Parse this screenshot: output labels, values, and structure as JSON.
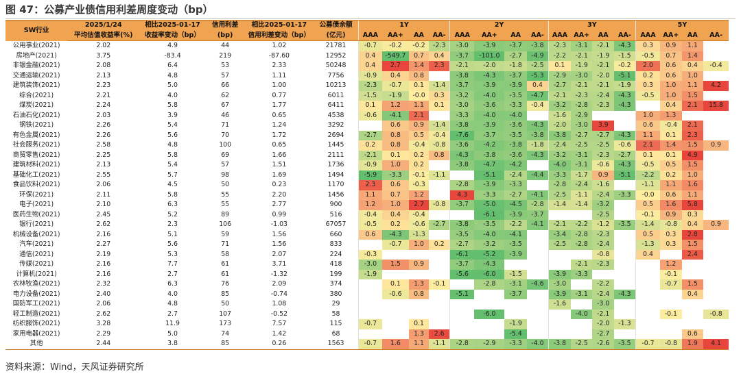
{
  "title": "图 47：公募产业债信用利差周度变动（bp）",
  "source": "资料来源：Wind，天风证券研究所",
  "header": {
    "sw": "SW行业",
    "c1a": "2025/1/24",
    "c1b": "平均估值收益率(%)",
    "c2a": "相比2025-01-17",
    "c2b": "收益率变动（bp）",
    "c3a": "信用利差",
    "c3b": "(bp)",
    "c4a": "相比2025-01-17",
    "c4b": "信用利差变动（bp）",
    "c5a": "公募债余额",
    "c5b": "(亿元)",
    "groups": [
      "1Y",
      "2Y",
      "3Y",
      "5Y"
    ],
    "ratings": [
      "AAA",
      "AA+",
      "AA",
      "AA-"
    ]
  },
  "rows": [
    {
      "name": "公用事业(2021)",
      "y": "2.02",
      "dy": "4.9",
      "s": "44",
      "ds": "1.02",
      "bal": "21781",
      "v": [
        "-0.7",
        "-0.2",
        "-0.2",
        "-2.3",
        "-3.0",
        "-3.9",
        "-3.7",
        "-3.8",
        "-2.3",
        "-3.1",
        "-2.1",
        "-4.3",
        "0.3",
        "0.9",
        "1.1",
        ""
      ]
    },
    {
      "name": "房地产(2021)",
      "y": "3.75",
      "dy": "-83.4",
      "s": "219",
      "ds": "-87.60",
      "bal": "12952",
      "v": [
        "0.4",
        "-549.7",
        "0.7",
        "0.4",
        "-3.7",
        "-101.0",
        "-2.7",
        "-4.9",
        "-2.2",
        "-2.1",
        "-1.9",
        "-1.5",
        "-0.5",
        "0.7",
        "1.4",
        ""
      ]
    },
    {
      "name": "非银金融(2021)",
      "y": "2.08",
      "dy": "6.4",
      "s": "53",
      "ds": "2.33",
      "bal": "50248",
      "v": [
        "0.4",
        "2.7",
        "1.4",
        "2.3",
        "-2.1",
        "-2.0",
        "-1.8",
        "-2.5",
        "0.1",
        "-1.9",
        "-2.1",
        "-0.2",
        "2.0",
        "0.6",
        "0.4",
        "-0.4"
      ]
    },
    {
      "name": "交通运输(2021)",
      "y": "2.13",
      "dy": "4.8",
      "s": "57",
      "ds": "1.11",
      "bal": "7756",
      "v": [
        "-0.9",
        "0.4",
        "0.8",
        "",
        "-3.8",
        "-4.3",
        "-3.7",
        "-5.3",
        "-2.9",
        "-3.0",
        "-2.0",
        "-5.1",
        "0.2",
        "0.6",
        "1.0",
        ""
      ]
    },
    {
      "name": "建筑装饰(2021)",
      "y": "2.23",
      "dy": "5.0",
      "s": "66",
      "ds": "1.00",
      "bal": "10213",
      "v": [
        "-2.3",
        "-0.7",
        "0.1",
        "-1.4",
        "-3.7",
        "-3.9",
        "-3.9",
        "0.4",
        "-2.7",
        "-2.1",
        "-2.1",
        "-1.9",
        "0.3",
        "1.0",
        "1.1",
        "4.2"
      ]
    },
    {
      "name": "综合(2021)",
      "y": "2.21",
      "dy": "4.0",
      "s": "62",
      "ds": "0.77",
      "bal": "6011",
      "v": [
        "-1.5",
        "-1.9",
        "-0.0",
        "0.3",
        "-3.2",
        "-4.0",
        "-3.5",
        "-4.7",
        "-2.1",
        "-2.3",
        "-2.4",
        "-4.3",
        "-0.5",
        "1.0",
        "1.5",
        ""
      ]
    },
    {
      "name": "煤炭(2021)",
      "y": "2.24",
      "dy": "5.8",
      "s": "67",
      "ds": "1.77",
      "bal": "6411",
      "v": [
        "0.1",
        "1.2",
        "1.1",
        "0.1",
        "-3.0",
        "-3.6",
        "-3.3",
        "-0.4",
        "-3.2",
        "-2.8",
        "-2.3",
        "-4.3",
        "",
        "0.4",
        "2.1",
        "15.8"
      ]
    },
    {
      "name": "石油石化(2021)",
      "y": "2.03",
      "dy": "3.9",
      "s": "46",
      "ds": "0.65",
      "bal": "4538",
      "v": [
        "-0.6",
        "-4.1",
        "2.1",
        "",
        "-3.3",
        "-4.0",
        "-4.0",
        "",
        "-1.6",
        "-2.9",
        "",
        "",
        "1.0",
        "1.3",
        "",
        ""
      ]
    },
    {
      "name": "钢铁(2021)",
      "y": "2.26",
      "dy": "5.4",
      "s": "71",
      "ds": "1.24",
      "bal": "3292",
      "v": [
        "",
        "0.6",
        "0.9",
        "-1.4",
        "-3.8",
        "-3.9",
        "-3.6",
        "-4.3",
        "-2.0",
        "-3.0",
        "3.9",
        "",
        "0.6",
        "-0.4",
        "2.1",
        ""
      ]
    },
    {
      "name": "有色金属(2021)",
      "y": "2.26",
      "dy": "5.6",
      "s": "70",
      "ds": "1.72",
      "bal": "2694",
      "v": [
        "-2.7",
        "0.8",
        "0.5",
        "-0.4",
        "-7.6",
        "-3.7",
        "-3.5",
        "-3.8",
        "-3.8",
        "-2.7",
        "-2.7",
        "-4.3",
        "1.1",
        "0.1",
        "2.3",
        ""
      ]
    },
    {
      "name": "社会服务(2021)",
      "y": "2.58",
      "dy": "4.8",
      "s": "100",
      "ds": "0.65",
      "bal": "1445",
      "v": [
        "0.2",
        "0.8",
        "-0.4",
        "-0.8",
        "-3.6",
        "-4.2",
        "-3.8",
        "-1.8",
        "-2.4",
        "-2.5",
        "-2.5",
        "-0.6",
        "2.1",
        "1.4",
        "1.5",
        "0.9"
      ]
    },
    {
      "name": "商贸零售(2021)",
      "y": "2.25",
      "dy": "5.8",
      "s": "69",
      "ds": "1.66",
      "bal": "2111",
      "v": [
        "-2.1",
        "0.1",
        "0.2",
        "0.8",
        "-4.3",
        "-3.8",
        "-3.6",
        "-4.3",
        "-3.2",
        "-3.1",
        "-2.3",
        "-2.7",
        "0.1",
        "0.1",
        "4.9",
        ""
      ]
    },
    {
      "name": "建筑材料(2021)",
      "y": "2.13",
      "dy": "5.4",
      "s": "57",
      "ds": "1.51",
      "bal": "1736",
      "v": [
        "-0.9",
        "1.0",
        "0.2",
        "",
        "-3.8",
        "-4.7",
        "-4.2",
        "",
        "-4.0",
        "-3.1",
        "-0.6",
        "-4.3",
        "-0.5",
        "0.5",
        "1.5",
        ""
      ]
    },
    {
      "name": "基础化工(2021)",
      "y": "2.55",
      "dy": "5.7",
      "s": "98",
      "ds": "1.69",
      "bal": "1494",
      "v": [
        "-5.9",
        "-3.3",
        "-0.1",
        "-1.1",
        "",
        "-5.1",
        "-2.4",
        "-4.4",
        "-3.3",
        "-1.7",
        "0.9",
        "-5.1",
        "-2.2",
        "0.2",
        "1.0",
        ""
      ]
    },
    {
      "name": "食品饮料(2021)",
      "y": "2.06",
      "dy": "4.5",
      "s": "50",
      "ds": "0.23",
      "bal": "1170",
      "v": [
        "2.3",
        "0.6",
        "-0.3",
        "",
        "-2.8",
        "-3.9",
        "-3.3",
        "",
        "-2.8",
        "-2.4",
        "-1.6",
        "",
        "-1.1",
        "1.1",
        "1.6",
        ""
      ]
    },
    {
      "name": "环保(2021)",
      "y": "2.11",
      "dy": "5.8",
      "s": "55",
      "ds": "2.20",
      "bal": "1456",
      "v": [
        "1.1",
        "0.7",
        "1.2",
        "",
        "4.3",
        "-3.3",
        "-2.7",
        "-4.1",
        "-2.5",
        "-1.1",
        "-2.4",
        "-3.3",
        "-0.0",
        "0.6",
        "1.1",
        ""
      ]
    },
    {
      "name": "电子(2021)",
      "y": "2.10",
      "dy": "6.3",
      "s": "55",
      "ds": "2.77",
      "bal": "900",
      "v": [
        "1.2",
        "1.0",
        "2.7",
        "-0.8",
        "-3.7",
        "-5.0",
        "-4.5",
        "-2.8",
        "-1.4",
        "-1.4",
        "-3.2",
        "",
        "0.5",
        "1.6",
        "5.8",
        ""
      ]
    },
    {
      "name": "医药生物(2021)",
      "y": "2.45",
      "dy": "5.2",
      "s": "89",
      "ds": "0.99",
      "bal": "516",
      "v": [
        "-0.4",
        "0.4",
        "-0.4",
        "",
        "",
        "-6.1",
        "-3.9",
        "-3.7",
        "",
        "",
        "-2.5",
        "",
        "-0.1",
        "0.9",
        "0.3",
        ""
      ]
    },
    {
      "name": "银行(2021)",
      "y": "2.62",
      "dy": "2.3",
      "s": "106",
      "ds": "-1.03",
      "bal": "67057",
      "v": [
        "-0.5",
        "0.2",
        "-0.6",
        "-2.7",
        "-3.8",
        "-3.5",
        "-2.2",
        "-4.1",
        "-2.1",
        "-2.2",
        "-1.2",
        "-3.5",
        "-1.4",
        "-0.8",
        "0.4",
        "0.9"
      ]
    },
    {
      "name": "机械设备(2021)",
      "y": "2.16",
      "dy": "5.1",
      "s": "59",
      "ds": "1.56",
      "bal": "660",
      "v": [
        "0.6",
        "-4.3",
        "-1.3",
        "",
        "-3.5",
        "-4.0",
        "-4.1",
        "",
        "-3.4",
        "-2.8",
        "-2.3",
        "",
        "0.5",
        "0.3",
        "2.8",
        ""
      ]
    },
    {
      "name": "汽车(2021)",
      "y": "2.27",
      "dy": "5.6",
      "s": "71",
      "ds": "1.56",
      "bal": "833",
      "v": [
        "",
        "-0.7",
        "1.0",
        "0.2",
        "-2.7",
        "-3.2",
        "-3.5",
        "",
        "-2.5",
        "-2.8",
        "-2.4",
        "",
        "-1.3",
        "0.3",
        "1.5",
        ""
      ]
    },
    {
      "name": "通信(2021)",
      "y": "2.19",
      "dy": "5.3",
      "s": "58",
      "ds": "2.07",
      "bal": "224",
      "v": [
        "-0.3",
        "",
        "",
        "",
        "-6.1",
        "-5.2",
        "-3.9",
        "",
        "",
        "",
        "-0.8",
        "",
        "0.4",
        "",
        "2.4",
        ""
      ]
    },
    {
      "name": "传媒(2021)",
      "y": "2.16",
      "dy": "7.7",
      "s": "61",
      "ds": "3.71",
      "bal": "418",
      "v": [
        "-3.0",
        "1.5",
        "0.9",
        "",
        "-3.7",
        "-4.3",
        "",
        "",
        "",
        "-2.1",
        "-2.3",
        "",
        "",
        "1.2",
        "",
        ""
      ]
    },
    {
      "name": "计算机(2021)",
      "y": "2.16",
      "dy": "2.7",
      "s": "61",
      "ds": "-1.32",
      "bal": "199",
      "v": [
        "-1.9",
        "",
        "",
        "",
        "-5.6",
        "-6.0",
        "-1.5",
        "",
        "-3.9",
        "-3.3",
        "",
        "",
        "",
        "-0.1",
        "",
        ""
      ]
    },
    {
      "name": "农林牧渔(2021)",
      "y": "2.32",
      "dy": "6.3",
      "s": "76",
      "ds": "2.09",
      "bal": "374",
      "v": [
        "",
        "0.1",
        "1.3",
        "-0.1",
        "",
        "-2.8",
        "-3.1",
        "-4.6",
        "-3.0",
        "",
        "-2.2",
        "",
        "",
        "-0.7",
        "1.5",
        ""
      ]
    },
    {
      "name": "电力设备(2021)",
      "y": "2.40",
      "dy": "4.0",
      "s": "85",
      "ds": "-0.74",
      "bal": "380",
      "v": [
        "",
        "-0.6",
        "0.8",
        "",
        "-5.1",
        "",
        "-3.7",
        "",
        "-3.9",
        "-3.1",
        "-2.4",
        "-4.3",
        "",
        "",
        "0.4",
        ""
      ]
    },
    {
      "name": "国防军工(2021)",
      "y": "2.06",
      "dy": "4.8",
      "s": "50",
      "ds": "1.08",
      "bal": "29",
      "v": [
        "",
        "",
        "",
        "",
        "",
        "",
        "",
        "",
        "-1.6",
        "",
        "-3.0",
        "",
        "",
        "",
        "",
        ""
      ]
    },
    {
      "name": "轻工制造(2021)",
      "y": "2.62",
      "dy": "2.7",
      "s": "107",
      "ds": "-0.52",
      "bal": "58",
      "v": [
        "",
        "",
        "",
        "",
        "",
        "-6.0",
        "",
        "",
        "",
        "-4.0",
        "-2.1",
        "",
        "",
        "-0.1",
        "",
        "-0.8"
      ]
    },
    {
      "name": "纺织服饰(2021)",
      "y": "3.28",
      "dy": "11.9",
      "s": "173",
      "ds": "7.57",
      "bal": "115",
      "v": [
        "-0.7",
        "",
        "0.1",
        "",
        "",
        "",
        "-1.9",
        "",
        "",
        "",
        "-2.0",
        "-1.3",
        "",
        "",
        "",
        ""
      ]
    },
    {
      "name": "家用电器(2021)",
      "y": "2.29",
      "dy": "5.0",
      "s": "74",
      "ds": "1.42",
      "bal": "68",
      "v": [
        "",
        "",
        "1.3",
        "2.6",
        "",
        "",
        "-5.4",
        "",
        "",
        "",
        "-2.7",
        "",
        "",
        "",
        "0.6",
        ""
      ]
    },
    {
      "name": "其他",
      "y": "2.44",
      "dy": "3.8",
      "s": "85",
      "ds": "0.26",
      "bal": "1563",
      "v": [
        "-0.7",
        "1.6",
        "1.1",
        "-1.1",
        "-2.8",
        "-2.9",
        "-3.3",
        "-4.0",
        "-3.8",
        "-2.5",
        "-2.6",
        "-3.5",
        "-0.7",
        "-0.8",
        "1.9",
        "4.1"
      ]
    }
  ]
}
